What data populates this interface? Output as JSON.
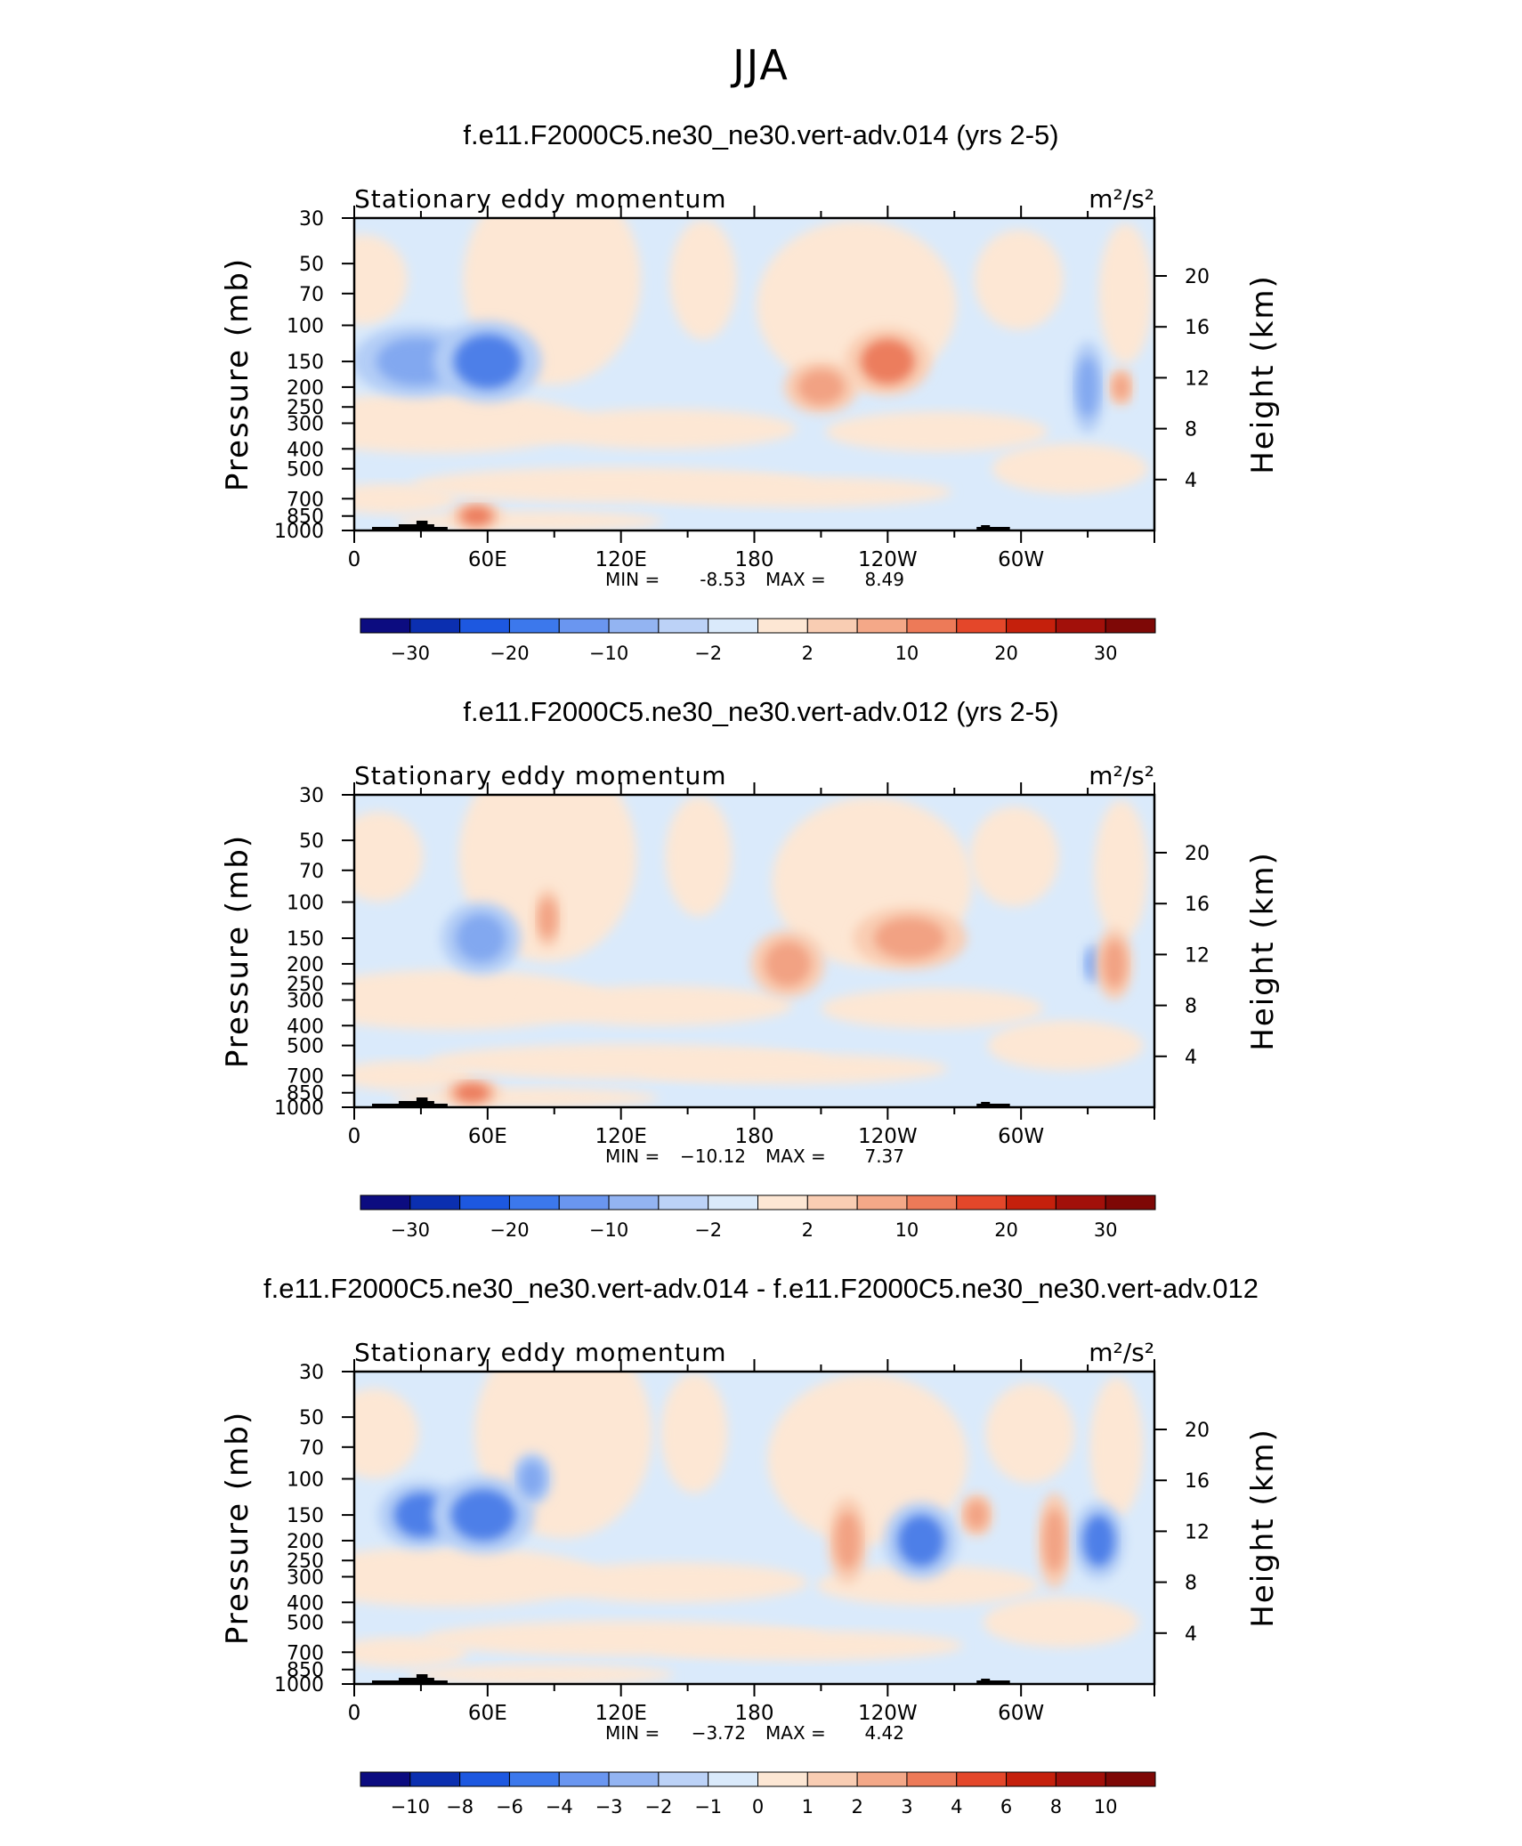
{
  "figure": {
    "title": "JJA"
  },
  "chart_data": [
    {
      "type": "heatmap",
      "title": "f.e11.F2000C5.ne30_ne30.vert-adv.014 (yrs 2-5)",
      "subtitle_left": "Stationary eddy momentum",
      "units": "m²/s²",
      "ylabel": "Pressure (mb)",
      "ylabel_right": "Height (km)",
      "xticks": [
        "0",
        "60E",
        "120E",
        "180",
        "120W",
        "60W"
      ],
      "yticks": [
        "30",
        "50",
        "70",
        "100",
        "150",
        "200",
        "250",
        "300",
        "400",
        "500",
        "700",
        "850",
        "1000"
      ],
      "yticks_right": [
        "20",
        "16",
        "12",
        "8",
        "4"
      ],
      "stats": {
        "min_label": "MIN =",
        "min": "-8.53",
        "max_label": "MAX =",
        "max": "8.49"
      },
      "colorbar_labels": [
        "-30",
        "-20",
        "-10",
        "-2",
        "2",
        "10",
        "20",
        "30"
      ],
      "features": [
        {
          "lon": 28,
          "p": 150,
          "rx": 45,
          "ry": 30,
          "level": -2
        },
        {
          "lon": 60,
          "p": 150,
          "rx": 38,
          "ry": 34,
          "level": -3
        },
        {
          "lon": 240,
          "p": 150,
          "rx": 30,
          "ry": 28,
          "level": 3
        },
        {
          "lon": 210,
          "p": 200,
          "rx": 26,
          "ry": 22,
          "level": 2
        },
        {
          "lon": 330,
          "p": 200,
          "rx": 12,
          "ry": 38,
          "level": -2
        },
        {
          "lon": 345,
          "p": 200,
          "rx": 9,
          "ry": 16,
          "level": 2
        },
        {
          "lon": 55,
          "p": 850,
          "rx": 18,
          "ry": 12,
          "level": 3
        }
      ]
    },
    {
      "type": "heatmap",
      "title": "f.e11.F2000C5.ne30_ne30.vert-adv.012 (yrs 2-5)",
      "subtitle_left": "Stationary eddy momentum",
      "units": "m²/s²",
      "ylabel": "Pressure (mb)",
      "ylabel_right": "Height (km)",
      "xticks": [
        "0",
        "60E",
        "120E",
        "180",
        "120W",
        "60W"
      ],
      "yticks": [
        "30",
        "50",
        "70",
        "100",
        "150",
        "200",
        "250",
        "300",
        "400",
        "500",
        "700",
        "850",
        "1000"
      ],
      "yticks_right": [
        "20",
        "16",
        "12",
        "8",
        "4"
      ],
      "stats": {
        "min_label": "MIN =",
        "min": "−10.12",
        "max_label": "MAX =",
        "max": "7.37"
      },
      "colorbar_labels": [
        "-30",
        "-20",
        "-10",
        "-2",
        "2",
        "10",
        "20",
        "30"
      ],
      "features": [
        {
          "lon": 57,
          "p": 150,
          "rx": 28,
          "ry": 30,
          "level": -2
        },
        {
          "lon": 87,
          "p": 120,
          "rx": 10,
          "ry": 25,
          "level": 2
        },
        {
          "lon": 195,
          "p": 200,
          "rx": 26,
          "ry": 28,
          "level": 2
        },
        {
          "lon": 250,
          "p": 150,
          "rx": 40,
          "ry": 26,
          "level": 2
        },
        {
          "lon": 333,
          "p": 200,
          "rx": 9,
          "ry": 18,
          "level": -2
        },
        {
          "lon": 342,
          "p": 200,
          "rx": 13,
          "ry": 30,
          "level": 2
        },
        {
          "lon": 53,
          "p": 850,
          "rx": 20,
          "ry": 12,
          "level": 3
        }
      ]
    },
    {
      "type": "heatmap",
      "title": "f.e11.F2000C5.ne30_ne30.vert-adv.014 - f.e11.F2000C5.ne30_ne30.vert-adv.012",
      "subtitle_left": "Stationary eddy momentum",
      "units": "m²/s²",
      "ylabel": "Pressure (mb)",
      "ylabel_right": "Height (km)",
      "xticks": [
        "0",
        "60E",
        "120E",
        "180",
        "120W",
        "60W"
      ],
      "yticks": [
        "30",
        "50",
        "70",
        "100",
        "150",
        "200",
        "250",
        "300",
        "400",
        "500",
        "700",
        "850",
        "1000"
      ],
      "yticks_right": [
        "20",
        "16",
        "12",
        "8",
        "4"
      ],
      "stats": {
        "min_label": "MIN =",
        "min": "−3.72",
        "max_label": "MAX =",
        "max": "4.42"
      },
      "colorbar_labels": [
        "-10",
        "-8",
        "-6",
        "-4",
        "-3",
        "-2",
        "-1",
        "0",
        "1",
        "2",
        "3",
        "4",
        "6",
        "8",
        "10"
      ],
      "features": [
        {
          "lon": 30,
          "p": 150,
          "rx": 30,
          "ry": 28,
          "level": -3
        },
        {
          "lon": 58,
          "p": 150,
          "rx": 36,
          "ry": 32,
          "level": -3
        },
        {
          "lon": 80,
          "p": 100,
          "rx": 14,
          "ry": 22,
          "level": -2
        },
        {
          "lon": 222,
          "p": 200,
          "rx": 14,
          "ry": 36,
          "level": 2
        },
        {
          "lon": 255,
          "p": 200,
          "rx": 26,
          "ry": 32,
          "level": -3
        },
        {
          "lon": 280,
          "p": 150,
          "rx": 12,
          "ry": 18,
          "level": 2
        },
        {
          "lon": 315,
          "p": 200,
          "rx": 12,
          "ry": 40,
          "level": 2
        },
        {
          "lon": 335,
          "p": 200,
          "rx": 18,
          "ry": 32,
          "level": -3
        }
      ]
    }
  ]
}
